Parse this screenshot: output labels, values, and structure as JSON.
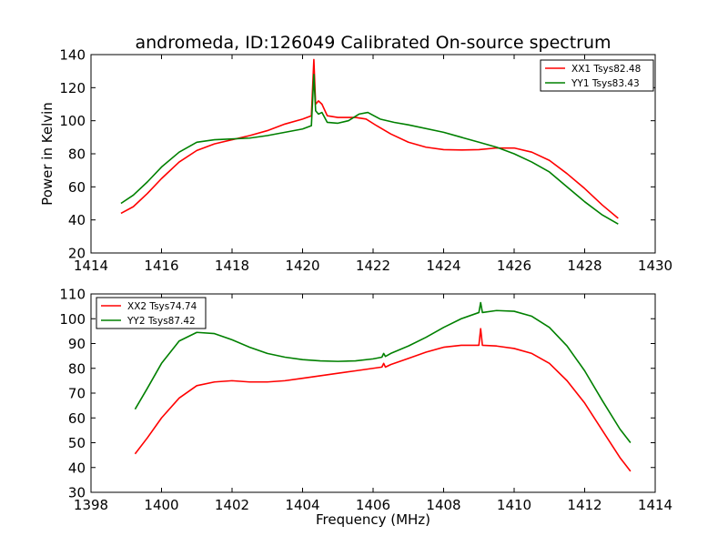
{
  "chart_data": [
    {
      "type": "line",
      "title": "andromeda, ID:126049 Calibrated On-source spectrum",
      "xlabel": "",
      "ylabel": "Power in Kelvin",
      "xlim": [
        1414,
        1430
      ],
      "ylim": [
        20,
        140
      ],
      "xticks": [
        1414,
        1416,
        1418,
        1420,
        1422,
        1424,
        1426,
        1428,
        1430
      ],
      "yticks": [
        20,
        40,
        60,
        80,
        100,
        120,
        140
      ],
      "grid": false,
      "legend_position": "top-right",
      "series": [
        {
          "name": "XX1 Tsys82.48",
          "color": "#ff0000",
          "points": [
            [
              1414.85,
              44
            ],
            [
              1415.2,
              48
            ],
            [
              1415.6,
              56
            ],
            [
              1416.0,
              65
            ],
            [
              1416.5,
              75
            ],
            [
              1417.0,
              82
            ],
            [
              1417.5,
              86
            ],
            [
              1418.0,
              88.5
            ],
            [
              1418.5,
              91
            ],
            [
              1419.0,
              94
            ],
            [
              1419.5,
              98
            ],
            [
              1420.0,
              101
            ],
            [
              1420.25,
              103
            ],
            [
              1420.32,
              137
            ],
            [
              1420.37,
              110
            ],
            [
              1420.45,
              112
            ],
            [
              1420.55,
              110
            ],
            [
              1420.7,
              103
            ],
            [
              1421.0,
              102
            ],
            [
              1421.5,
              102
            ],
            [
              1421.8,
              101
            ],
            [
              1422.1,
              97
            ],
            [
              1422.5,
              92
            ],
            [
              1423.0,
              87
            ],
            [
              1423.5,
              84
            ],
            [
              1424.0,
              82.5
            ],
            [
              1424.5,
              82.3
            ],
            [
              1425.0,
              82.5
            ],
            [
              1425.5,
              83.5
            ],
            [
              1426.0,
              83.5
            ],
            [
              1426.5,
              81
            ],
            [
              1427.0,
              76
            ],
            [
              1427.5,
              68
            ],
            [
              1428.0,
              59
            ],
            [
              1428.5,
              49
            ],
            [
              1428.95,
              41
            ]
          ]
        },
        {
          "name": "YY1 Tsys83.43",
          "color": "#008000",
          "points": [
            [
              1414.85,
              50
            ],
            [
              1415.2,
              55
            ],
            [
              1415.6,
              63
            ],
            [
              1416.0,
              72
            ],
            [
              1416.5,
              81
            ],
            [
              1417.0,
              87
            ],
            [
              1417.5,
              88.5
            ],
            [
              1418.0,
              89
            ],
            [
              1418.5,
              89.5
            ],
            [
              1419.0,
              91
            ],
            [
              1419.5,
              93
            ],
            [
              1420.0,
              95
            ],
            [
              1420.25,
              97
            ],
            [
              1420.32,
              128
            ],
            [
              1420.37,
              106
            ],
            [
              1420.45,
              104
            ],
            [
              1420.55,
              105
            ],
            [
              1420.7,
              99
            ],
            [
              1421.0,
              98.5
            ],
            [
              1421.3,
              100
            ],
            [
              1421.6,
              104
            ],
            [
              1421.85,
              105
            ],
            [
              1422.2,
              101
            ],
            [
              1422.6,
              99
            ],
            [
              1423.0,
              97.5
            ],
            [
              1424.0,
              93
            ],
            [
              1424.5,
              90
            ],
            [
              1425.0,
              87
            ],
            [
              1425.5,
              84
            ],
            [
              1426.0,
              80
            ],
            [
              1426.5,
              75
            ],
            [
              1427.0,
              69
            ],
            [
              1427.5,
              60
            ],
            [
              1428.0,
              51
            ],
            [
              1428.5,
              43
            ],
            [
              1428.95,
              37.5
            ]
          ]
        }
      ]
    },
    {
      "type": "line",
      "title": "",
      "xlabel": "Frequency (MHz)",
      "ylabel": "",
      "xlim": [
        1398,
        1414
      ],
      "ylim": [
        30,
        110
      ],
      "xticks": [
        1398,
        1400,
        1402,
        1404,
        1406,
        1408,
        1410,
        1412,
        1414
      ],
      "yticks": [
        30,
        40,
        50,
        60,
        70,
        80,
        90,
        100,
        110
      ],
      "grid": false,
      "legend_position": "top-left",
      "series": [
        {
          "name": "XX2 Tsys74.74",
          "color": "#ff0000",
          "points": [
            [
              1399.25,
              45.5
            ],
            [
              1399.6,
              52
            ],
            [
              1400.0,
              60
            ],
            [
              1400.5,
              68
            ],
            [
              1401.0,
              73
            ],
            [
              1401.5,
              74.5
            ],
            [
              1402.0,
              75
            ],
            [
              1402.5,
              74.5
            ],
            [
              1403.0,
              74.5
            ],
            [
              1403.5,
              75
            ],
            [
              1404.0,
              76
            ],
            [
              1404.5,
              77
            ],
            [
              1405.0,
              78
            ],
            [
              1405.5,
              79
            ],
            [
              1406.0,
              80
            ],
            [
              1406.25,
              80.5
            ],
            [
              1406.3,
              82
            ],
            [
              1406.35,
              80.5
            ],
            [
              1406.5,
              81.5
            ],
            [
              1407.0,
              84
            ],
            [
              1407.5,
              86.5
            ],
            [
              1408.0,
              88.5
            ],
            [
              1408.5,
              89.3
            ],
            [
              1409.0,
              89.3
            ],
            [
              1409.05,
              96
            ],
            [
              1409.1,
              89.3
            ],
            [
              1409.5,
              89
            ],
            [
              1410.0,
              88
            ],
            [
              1410.5,
              86
            ],
            [
              1411.0,
              82
            ],
            [
              1411.5,
              75
            ],
            [
              1412.0,
              66
            ],
            [
              1412.5,
              55
            ],
            [
              1413.0,
              44
            ],
            [
              1413.3,
              38.5
            ]
          ]
        },
        {
          "name": "YY2 Tsys87.42",
          "color": "#008000",
          "points": [
            [
              1399.25,
              63.5
            ],
            [
              1399.6,
              72
            ],
            [
              1400.0,
              82
            ],
            [
              1400.5,
              91
            ],
            [
              1401.0,
              94.5
            ],
            [
              1401.5,
              94
            ],
            [
              1402.0,
              91.5
            ],
            [
              1402.5,
              88.5
            ],
            [
              1403.0,
              86
            ],
            [
              1403.5,
              84.5
            ],
            [
              1404.0,
              83.5
            ],
            [
              1404.5,
              83
            ],
            [
              1405.0,
              82.8
            ],
            [
              1405.5,
              83
            ],
            [
              1406.0,
              83.8
            ],
            [
              1406.25,
              84.5
            ],
            [
              1406.3,
              86
            ],
            [
              1406.35,
              84.8
            ],
            [
              1406.5,
              86
            ],
            [
              1407.0,
              89
            ],
            [
              1407.5,
              92.5
            ],
            [
              1408.0,
              96.5
            ],
            [
              1408.5,
              100
            ],
            [
              1409.0,
              102.5
            ],
            [
              1409.05,
              106.5
            ],
            [
              1409.1,
              102.5
            ],
            [
              1409.5,
              103.3
            ],
            [
              1410.0,
              103
            ],
            [
              1410.5,
              101
            ],
            [
              1411.0,
              96.5
            ],
            [
              1411.5,
              89
            ],
            [
              1412.0,
              79
            ],
            [
              1412.5,
              67
            ],
            [
              1413.0,
              55.5
            ],
            [
              1413.3,
              50
            ]
          ]
        }
      ]
    }
  ]
}
